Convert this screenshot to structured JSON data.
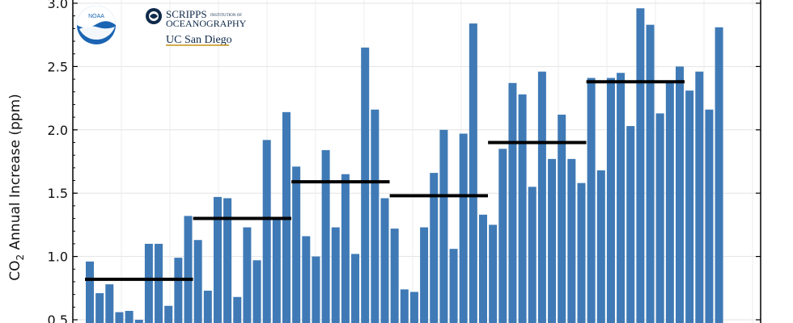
{
  "logos": {
    "noaa": "NOAA",
    "scripps_main": "SCRIPPS",
    "scripps_sub": "INSTITUTION OF",
    "scripps_ocean": "OCEANOGRAPHY",
    "ucsd": "UC San Diego",
    "colors": {
      "noaa_blue": "#1b64b3",
      "scripps_navy": "#0f2a4a",
      "ucsd_gold": "#c69214"
    }
  },
  "chart_data": {
    "type": "bar",
    "ylabel_main": "CO",
    "ylabel_sub": "2",
    "ylabel_rest": " Annual Increase (ppm)",
    "ylim": [
      0.5,
      3.0
    ],
    "yticks": [
      "0.5",
      "1.0",
      "1.5",
      "2.0",
      "2.5",
      "3.0"
    ],
    "grid": true,
    "bar_color": "#3f7ab6",
    "mean_line_color": "#000000",
    "values": [
      0.96,
      0.71,
      0.78,
      0.56,
      0.57,
      0.5,
      1.1,
      1.1,
      0.61,
      0.99,
      1.32,
      1.13,
      0.73,
      1.47,
      1.46,
      0.68,
      1.23,
      0.97,
      1.92,
      1.3,
      2.14,
      1.71,
      1.16,
      1.0,
      1.84,
      1.23,
      1.65,
      1.02,
      2.65,
      2.16,
      1.46,
      1.22,
      0.74,
      0.72,
      1.23,
      1.66,
      2.0,
      1.06,
      1.97,
      2.84,
      1.33,
      1.25,
      1.85,
      2.37,
      2.28,
      1.55,
      2.46,
      1.77,
      2.12,
      1.77,
      1.58,
      2.41,
      1.68,
      2.41,
      2.45,
      2.03,
      2.96,
      2.83,
      2.13,
      2.38,
      2.5,
      2.31,
      2.46,
      2.16,
      2.81
    ],
    "decade_means": [
      {
        "start": 1,
        "end": 11,
        "value": 0.82
      },
      {
        "start": 12,
        "end": 21,
        "value": 1.3
      },
      {
        "start": 22,
        "end": 31,
        "value": 1.59
      },
      {
        "start": 32,
        "end": 41,
        "value": 1.48
      },
      {
        "start": 42,
        "end": 51,
        "value": 1.9
      },
      {
        "start": 52,
        "end": 61,
        "value": 2.38
      }
    ]
  }
}
